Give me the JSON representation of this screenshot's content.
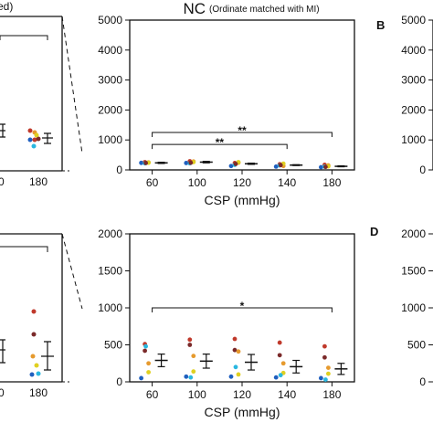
{
  "left_partial": {
    "top_text": "ed)",
    "top_xticks": [
      "0",
      "180"
    ],
    "bottom_xticks": [
      "0",
      "180"
    ]
  },
  "panel_b": {
    "letter": "B",
    "yticks": [
      "5000",
      "4000",
      "3000",
      "2000",
      "1000",
      "0"
    ]
  },
  "panel_d": {
    "letter": "D",
    "yticks": [
      "2000",
      "1500",
      "1000",
      "500",
      "0"
    ]
  },
  "chart_data": [
    {
      "type": "scatter",
      "title": "NC",
      "subtitle": "(Ordinate matched with MI)",
      "xlabel": "CSP (mmHg)",
      "ylabel": "",
      "categories": [
        "60",
        "100",
        "120",
        "140",
        "180"
      ],
      "ylim": [
        0,
        5000
      ],
      "yticks": [
        0,
        1000,
        2000,
        3000,
        4000,
        5000
      ],
      "points": [
        [
          {
            "y": 235,
            "color": "#1f5fbf"
          },
          {
            "y": 260,
            "color": "#c0392b"
          },
          {
            "y": 220,
            "color": "#2ab7e0"
          },
          {
            "y": 250,
            "color": "#e69a2e"
          },
          {
            "y": 240,
            "color": "#e0d020"
          },
          {
            "y": 230,
            "color": "#7b2a2a"
          }
        ],
        [
          {
            "y": 230,
            "color": "#1f5fbf"
          },
          {
            "y": 290,
            "color": "#c0392b"
          },
          {
            "y": 220,
            "color": "#2ab7e0"
          },
          {
            "y": 280,
            "color": "#e69a2e"
          },
          {
            "y": 260,
            "color": "#e0d020"
          },
          {
            "y": 240,
            "color": "#7b2a2a"
          }
        ],
        [
          {
            "y": 130,
            "color": "#1f5fbf"
          },
          {
            "y": 230,
            "color": "#c0392b"
          },
          {
            "y": 170,
            "color": "#2ab7e0"
          },
          {
            "y": 240,
            "color": "#e69a2e"
          },
          {
            "y": 260,
            "color": "#e0d020"
          },
          {
            "y": 200,
            "color": "#7b2a2a"
          }
        ],
        [
          {
            "y": 110,
            "color": "#1f5fbf"
          },
          {
            "y": 190,
            "color": "#c0392b"
          },
          {
            "y": 150,
            "color": "#2ab7e0"
          },
          {
            "y": 130,
            "color": "#e69a2e"
          },
          {
            "y": 210,
            "color": "#e0d020"
          },
          {
            "y": 160,
            "color": "#7b2a2a"
          }
        ],
        [
          {
            "y": 90,
            "color": "#1f5fbf"
          },
          {
            "y": 170,
            "color": "#c0392b"
          },
          {
            "y": 110,
            "color": "#2ab7e0"
          },
          {
            "y": 150,
            "color": "#e69a2e"
          },
          {
            "y": 120,
            "color": "#e0d020"
          },
          {
            "y": 100,
            "color": "#7b2a2a"
          }
        ]
      ],
      "mean": [
        235,
        260,
        205,
        160,
        120
      ],
      "error": [
        20,
        25,
        20,
        15,
        15
      ],
      "significance": [
        {
          "label": "**",
          "from": "60",
          "to": "180",
          "y": 1250
        },
        {
          "label": "**",
          "from": "60",
          "to": "140",
          "y": 850
        }
      ]
    },
    {
      "type": "scatter",
      "xlabel": "CSP (mmHg)",
      "ylabel": "",
      "categories": [
        "60",
        "100",
        "120",
        "140",
        "180"
      ],
      "ylim": [
        0,
        2000
      ],
      "yticks": [
        0,
        500,
        1000,
        1500,
        2000
      ],
      "points": [
        [
          {
            "y": 50,
            "color": "#1f5fbf"
          },
          {
            "y": 510,
            "color": "#c0392b"
          },
          {
            "y": 420,
            "color": "#7b2a2a"
          },
          {
            "y": 250,
            "color": "#e69a2e"
          },
          {
            "y": 130,
            "color": "#e0d020"
          },
          {
            "y": 480,
            "color": "#2ab7e0"
          }
        ],
        [
          {
            "y": 70,
            "color": "#1f5fbf"
          },
          {
            "y": 570,
            "color": "#c0392b"
          },
          {
            "y": 500,
            "color": "#7b2a2a"
          },
          {
            "y": 350,
            "color": "#e69a2e"
          },
          {
            "y": 140,
            "color": "#e0d020"
          },
          {
            "y": 60,
            "color": "#2ab7e0"
          }
        ],
        [
          {
            "y": 70,
            "color": "#1f5fbf"
          },
          {
            "y": 580,
            "color": "#c0392b"
          },
          {
            "y": 430,
            "color": "#7b2a2a"
          },
          {
            "y": 410,
            "color": "#e69a2e"
          },
          {
            "y": 100,
            "color": "#e0d020"
          },
          {
            "y": 200,
            "color": "#2ab7e0"
          }
        ],
        [
          {
            "y": 60,
            "color": "#1f5fbf"
          },
          {
            "y": 530,
            "color": "#c0392b"
          },
          {
            "y": 360,
            "color": "#7b2a2a"
          },
          {
            "y": 250,
            "color": "#e69a2e"
          },
          {
            "y": 120,
            "color": "#e0d020"
          },
          {
            "y": 90,
            "color": "#2ab7e0"
          }
        ],
        [
          {
            "y": 50,
            "color": "#1f5fbf"
          },
          {
            "y": 480,
            "color": "#c0392b"
          },
          {
            "y": 330,
            "color": "#7b2a2a"
          },
          {
            "y": 190,
            "color": "#e69a2e"
          },
          {
            "y": 110,
            "color": "#e0d020"
          },
          {
            "y": 30,
            "color": "#2ab7e0"
          }
        ]
      ],
      "mean": [
        290,
        280,
        265,
        205,
        175
      ],
      "error": [
        85,
        95,
        105,
        85,
        75
      ],
      "significance": [
        {
          "label": "*",
          "from": "60",
          "to": "180",
          "y": 1000
        }
      ]
    }
  ]
}
